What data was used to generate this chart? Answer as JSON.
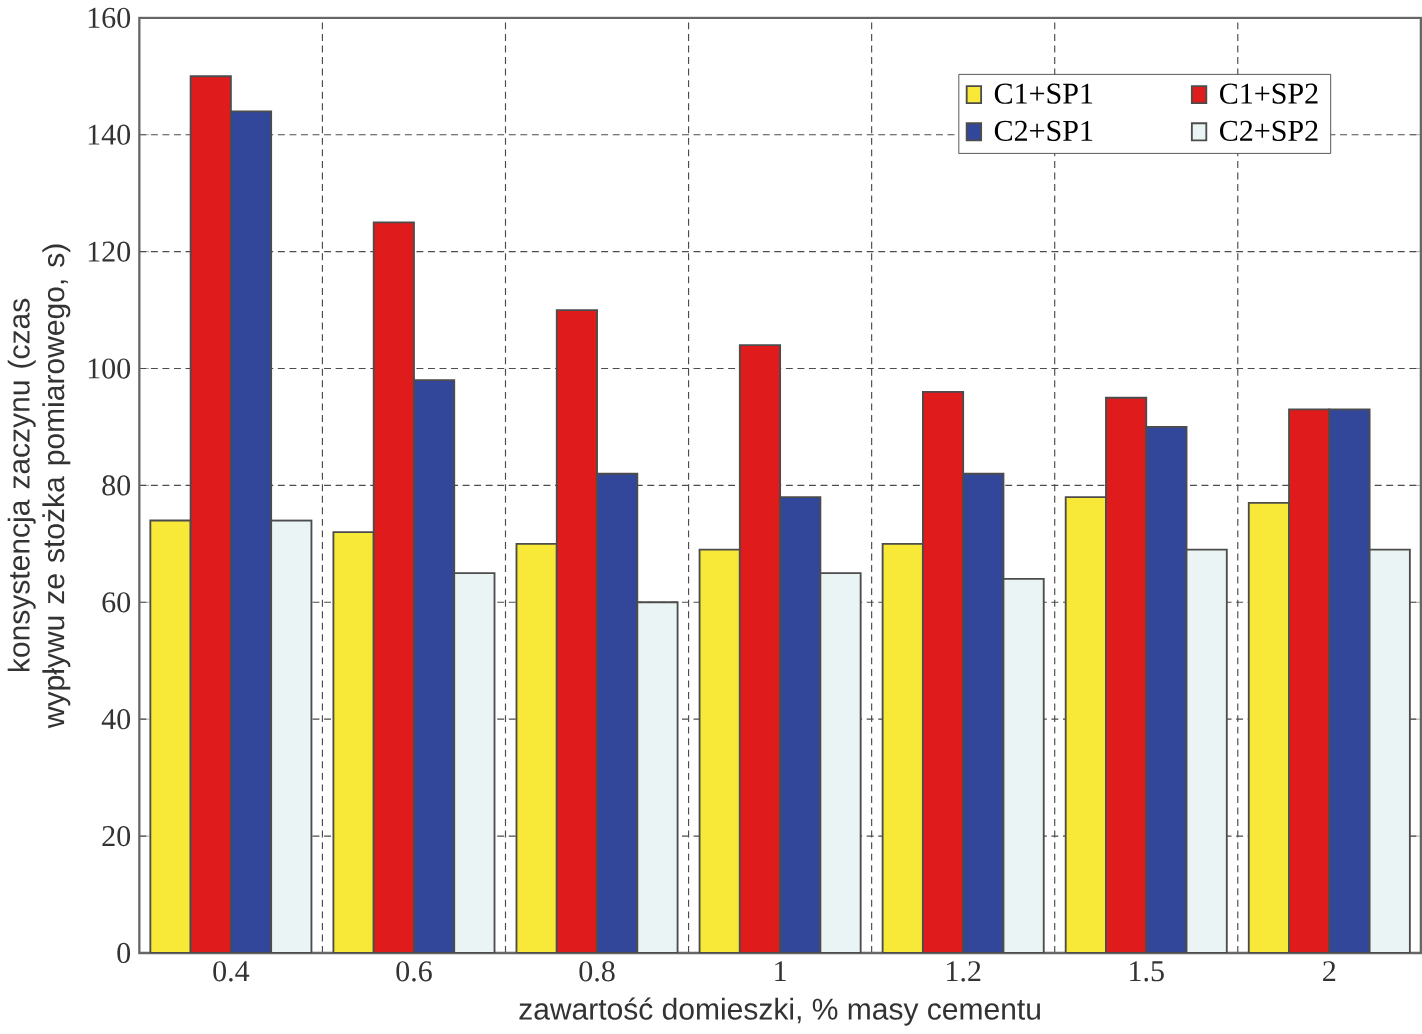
{
  "chart_data": {
    "type": "bar",
    "xlabel": "zawartość domieszki, % masy cementu",
    "ylabel": "konsystencja zaczynu (czas wypływu ze stożka pomiarowego, s)",
    "categories": [
      "0.4",
      "0.6",
      "0.8",
      "1",
      "1.2",
      "1.5",
      "2"
    ],
    "series": [
      {
        "name": "C1+SP1",
        "color": "#f8e838",
        "values": [
          74,
          72,
          70,
          69,
          70,
          78,
          77
        ]
      },
      {
        "name": "C1+SP2",
        "color": "#e01b1b",
        "values": [
          150,
          125,
          110,
          104,
          96,
          95,
          93
        ]
      },
      {
        "name": "C2+SP1",
        "color": "#33479a",
        "values": [
          144,
          98,
          82,
          78,
          82,
          90,
          93
        ]
      },
      {
        "name": "C2+SP2",
        "color": "#eaf4f4",
        "values": [
          74,
          65,
          60,
          65,
          64,
          69,
          69
        ]
      }
    ],
    "ylim": [
      0,
      160
    ],
    "yticks": [
      0,
      20,
      40,
      60,
      80,
      100,
      120,
      140,
      160
    ],
    "grid": true,
    "legend": "top right"
  }
}
